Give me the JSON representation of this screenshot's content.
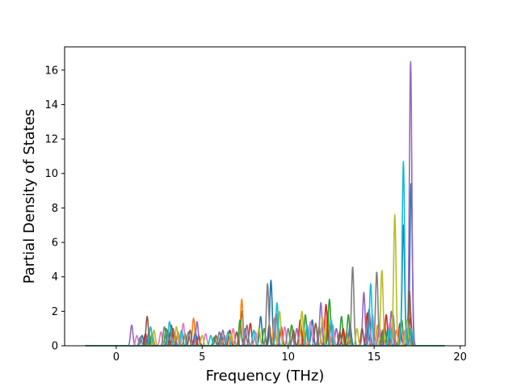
{
  "chart_data": {
    "type": "line",
    "title": "",
    "xlabel": "Frequency (THz)",
    "ylabel": "Partial Density of States",
    "xlim": [
      -3.0,
      20.3
    ],
    "ylim": [
      0,
      17.35
    ],
    "xticks": [
      0,
      5,
      10,
      15,
      20
    ],
    "xtick_labels": [
      "0",
      "5",
      "10",
      "15",
      "20"
    ],
    "yticks": [
      0,
      2,
      4,
      6,
      8,
      10,
      12,
      14,
      16
    ],
    "ytick_labels": [
      "0",
      "2",
      "4",
      "6",
      "8",
      "10",
      "12",
      "14",
      "16"
    ],
    "grid": false,
    "legend": "none",
    "x_range_of_data": [
      -1.8,
      19.1
    ],
    "colors": [
      "#1f77b4",
      "#ff7f0e",
      "#2ca02c",
      "#d62728",
      "#9467bd",
      "#8c564b",
      "#e377c2",
      "#7f7f7f",
      "#bcbd22",
      "#17becf"
    ],
    "series": [
      {
        "color": "#1f77b4",
        "peaks": [
          [
            1.5,
            0.6
          ],
          [
            3.0,
            0.9
          ],
          [
            4.6,
            0.8
          ],
          [
            6.1,
            0.7
          ],
          [
            7.3,
            2.0
          ],
          [
            8.4,
            1.7
          ],
          [
            9.0,
            3.8
          ],
          [
            11.4,
            1.5
          ],
          [
            12.3,
            1.0
          ],
          [
            13.6,
            1.2
          ],
          [
            14.7,
            2.1
          ],
          [
            15.8,
            1.0
          ],
          [
            16.7,
            7.0
          ],
          [
            17.15,
            9.5
          ]
        ]
      },
      {
        "color": "#ff7f0e",
        "peaks": [
          [
            2.1,
            0.7
          ],
          [
            3.6,
            0.8
          ],
          [
            4.5,
            1.6
          ],
          [
            6.3,
            0.6
          ],
          [
            7.3,
            2.7
          ],
          [
            9.2,
            1.6
          ],
          [
            10.9,
            1.0
          ],
          [
            12.3,
            2.0
          ],
          [
            13.4,
            0.8
          ],
          [
            15.2,
            1.2
          ],
          [
            16.3,
            0.9
          ],
          [
            17.1,
            2.0
          ]
        ]
      },
      {
        "color": "#2ca02c",
        "peaks": [
          [
            1.9,
            0.8
          ],
          [
            2.9,
            1.0
          ],
          [
            4.0,
            0.7
          ],
          [
            5.7,
            0.5
          ],
          [
            7.2,
            1.5
          ],
          [
            8.6,
            1.0
          ],
          [
            10.2,
            1.2
          ],
          [
            11.0,
            1.8
          ],
          [
            12.4,
            2.7
          ],
          [
            13.1,
            1.7
          ],
          [
            13.5,
            1.8
          ],
          [
            15.6,
            1.2
          ],
          [
            16.6,
            1.5
          ],
          [
            17.1,
            1.0
          ]
        ]
      },
      {
        "color": "#d62728",
        "peaks": [
          [
            1.7,
            0.7
          ],
          [
            3.2,
            1.2
          ],
          [
            4.8,
            0.6
          ],
          [
            6.6,
            0.9
          ],
          [
            7.8,
            1.3
          ],
          [
            9.6,
            1.1
          ],
          [
            10.7,
            1.5
          ],
          [
            12.2,
            2.4
          ],
          [
            13.2,
            1.0
          ],
          [
            14.6,
            1.9
          ],
          [
            15.7,
            1.8
          ],
          [
            16.5,
            1.3
          ],
          [
            17.1,
            1.6
          ]
        ]
      },
      {
        "color": "#9467bd",
        "peaks": [
          [
            0.9,
            1.2
          ],
          [
            1.8,
            0.5
          ],
          [
            3.4,
            0.7
          ],
          [
            4.7,
            1.4
          ],
          [
            6.2,
            0.9
          ],
          [
            7.5,
            1.0
          ],
          [
            9.3,
            1.9
          ],
          [
            10.5,
            1.0
          ],
          [
            11.9,
            2.5
          ],
          [
            12.8,
            1.0
          ],
          [
            14.4,
            3.1
          ],
          [
            15.3,
            1.2
          ],
          [
            16.0,
            2.0
          ],
          [
            17.12,
            16.5
          ]
        ]
      },
      {
        "color": "#8c564b",
        "peaks": [
          [
            1.8,
            1.7
          ],
          [
            3.3,
            1.0
          ],
          [
            4.3,
            0.9
          ],
          [
            5.8,
            0.6
          ],
          [
            7.0,
            0.8
          ],
          [
            8.9,
            1.2
          ],
          [
            10.3,
            0.9
          ],
          [
            11.6,
            1.3
          ],
          [
            13.0,
            0.8
          ],
          [
            14.3,
            1.0
          ],
          [
            15.5,
            0.9
          ],
          [
            17.05,
            3.2
          ]
        ]
      },
      {
        "color": "#e377c2",
        "peaks": [
          [
            1.2,
            0.6
          ],
          [
            2.6,
            0.8
          ],
          [
            3.9,
            1.3
          ],
          [
            5.2,
            0.7
          ],
          [
            6.8,
            1.0
          ],
          [
            8.1,
            0.8
          ],
          [
            9.8,
            1.1
          ],
          [
            11.3,
            1.4
          ],
          [
            12.6,
            1.2
          ],
          [
            14.9,
            1.8
          ],
          [
            15.9,
            1.3
          ],
          [
            16.8,
            0.9
          ]
        ]
      },
      {
        "color": "#7f7f7f",
        "peaks": [
          [
            1.4,
            0.5
          ],
          [
            2.8,
            1.1
          ],
          [
            4.2,
            0.8
          ],
          [
            6.0,
            0.8
          ],
          [
            7.6,
            1.2
          ],
          [
            8.8,
            3.6
          ],
          [
            10.0,
            1.0
          ],
          [
            11.8,
            1.1
          ],
          [
            13.75,
            4.6
          ],
          [
            15.15,
            4.3
          ],
          [
            16.1,
            1.8
          ],
          [
            17.0,
            1.2
          ]
        ]
      },
      {
        "color": "#bcbd22",
        "peaks": [
          [
            2.2,
            0.9
          ],
          [
            3.5,
            1.1
          ],
          [
            5.0,
            0.6
          ],
          [
            6.7,
            0.7
          ],
          [
            8.3,
            1.0
          ],
          [
            9.5,
            2.0
          ],
          [
            10.8,
            2.0
          ],
          [
            12.0,
            1.6
          ],
          [
            14.0,
            1.0
          ],
          [
            15.45,
            4.4
          ],
          [
            16.2,
            7.6
          ],
          [
            16.9,
            1.5
          ]
        ]
      },
      {
        "color": "#17becf",
        "peaks": [
          [
            2.0,
            1.1
          ],
          [
            3.1,
            1.4
          ],
          [
            3.8,
            0.9
          ],
          [
            5.5,
            0.6
          ],
          [
            6.5,
            0.8
          ],
          [
            8.0,
            0.9
          ],
          [
            9.35,
            2.5
          ],
          [
            11.1,
            1.2
          ],
          [
            12.5,
            1.5
          ],
          [
            14.8,
            3.6
          ],
          [
            15.9,
            1.0
          ],
          [
            16.7,
            10.7
          ],
          [
            17.15,
            1.0
          ]
        ]
      }
    ]
  }
}
